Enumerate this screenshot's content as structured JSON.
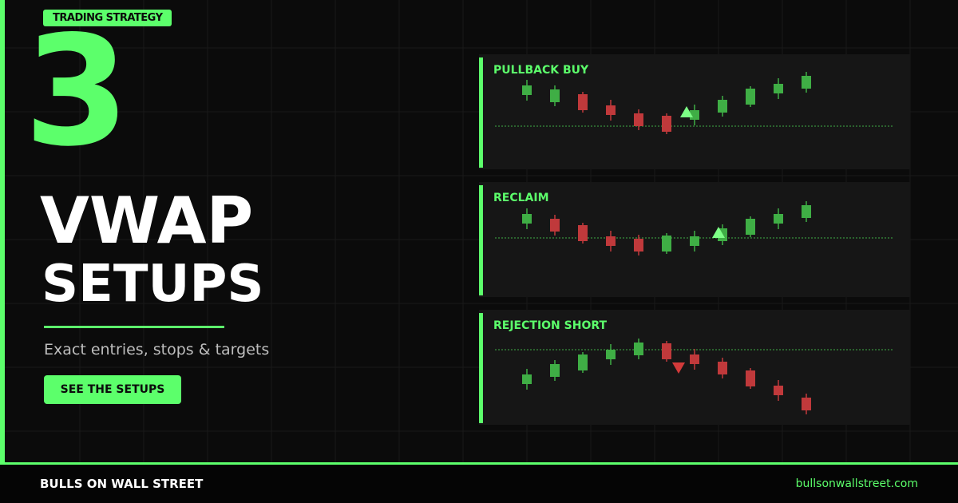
{
  "header": {
    "tag": "TRADING STRATEGY",
    "number": "3",
    "title_line1": "VWAP",
    "title_line2": "SETUPS",
    "subtitle": "Exact entries, stops & targets",
    "button": "SEE THE SETUPS"
  },
  "panels": [
    {
      "title": "PULLBACK BUY"
    },
    {
      "title": "RECLAIM"
    },
    {
      "title": "REJECTION SHORT"
    }
  ],
  "footer": {
    "brand": "BULLS ON WALL STREET",
    "url": "bullsonwallstreet.com"
  }
}
